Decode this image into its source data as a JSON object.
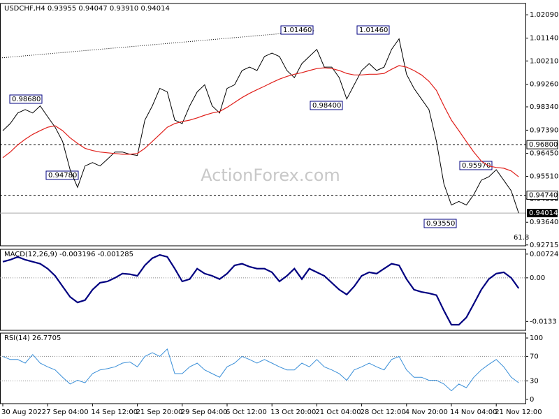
{
  "chart_data": [
    {
      "type": "line",
      "title": "USDCHF,H4 0.93955 0.94047 0.93910 0.94014",
      "watermark": "ActionForex.com",
      "note": "61.8",
      "ylim": [
        0.9268,
        1.0255
      ],
      "yticks": [
        {
          "value": 1.0209,
          "label": "1.02090"
        },
        {
          "value": 1.0114,
          "label": "1.01140"
        },
        {
          "value": 1.0021,
          "label": "1.00210"
        },
        {
          "value": 0.9926,
          "label": "0.99260"
        },
        {
          "value": 0.9834,
          "label": "0.98340"
        },
        {
          "value": 0.9739,
          "label": "0.97390"
        },
        {
          "value": 0.9645,
          "label": "0.96450"
        },
        {
          "value": 0.9551,
          "label": "0.95510"
        },
        {
          "value": 0.9459,
          "label": "0.94590"
        },
        {
          "value": 0.9364,
          "label": "0.93640"
        },
        {
          "value": 0.92715,
          "label": "0.92715"
        }
      ],
      "levels": [
        {
          "value": 0.968,
          "label": "0.96800"
        },
        {
          "value": 0.9474,
          "label": "0.94740"
        }
      ],
      "last": {
        "value": 0.94014,
        "label": "0.94014"
      },
      "annotations": [
        "0.98680",
        "0.94780",
        "1.01460",
        "0.98400",
        "1.01460",
        "0.95970",
        "0.93550"
      ],
      "grid": false,
      "series": [
        {
          "color": "#000000",
          "values": [
            0.9737,
            0.9766,
            0.9809,
            0.9823,
            0.9809,
            0.9838,
            0.9794,
            0.9751,
            0.9693,
            0.9578,
            0.9506,
            0.9593,
            0.9607,
            0.9593,
            0.9621,
            0.965,
            0.965,
            0.9641,
            0.9636,
            0.978,
            0.9838,
            0.9909,
            0.9895,
            0.978,
            0.9766,
            0.9838,
            0.9895,
            0.9924,
            0.9838,
            0.9809,
            0.9909,
            0.9924,
            0.9982,
            0.9996,
            0.9982,
            1.0039,
            1.0053,
            1.0039,
            0.9982,
            0.9953,
            1.001,
            1.0039,
            1.0068,
            0.9996,
            0.9996,
            0.9953,
            0.9866,
            0.9924,
            0.9982,
            1.001,
            0.9982,
            0.9996,
            1.0068,
            1.0111,
            0.9967,
            0.9909,
            0.9866,
            0.9823,
            0.9693,
            0.952,
            0.9434,
            0.9449,
            0.9434,
            0.9477,
            0.9535,
            0.9549,
            0.9578,
            0.9535,
            0.9492,
            0.9401
          ]
        },
        {
          "color": "#e0201b",
          "values": [
            0.9627,
            0.965,
            0.9679,
            0.9702,
            0.9722,
            0.9737,
            0.9751,
            0.9757,
            0.9737,
            0.9708,
            0.9685,
            0.9665,
            0.9656,
            0.965,
            0.9647,
            0.9644,
            0.9641,
            0.9641,
            0.9644,
            0.9665,
            0.9693,
            0.9722,
            0.9751,
            0.9766,
            0.9774,
            0.978,
            0.9789,
            0.98,
            0.9809,
            0.9815,
            0.9832,
            0.9852,
            0.9872,
            0.9889,
            0.9904,
            0.9918,
            0.9933,
            0.9947,
            0.9958,
            0.9967,
            0.9973,
            0.9982,
            0.999,
            0.9993,
            0.999,
            0.9982,
            0.997,
            0.9964,
            0.9964,
            0.9967,
            0.9967,
            0.997,
            0.9987,
            1.0002,
            0.9996,
            0.9982,
            0.9964,
            0.9938,
            0.9901,
            0.9838,
            0.978,
            0.9737,
            0.9693,
            0.965,
            0.9613,
            0.9593,
            0.9587,
            0.9584,
            0.9573,
            0.9549
          ]
        }
      ]
    },
    {
      "type": "line",
      "title": "MACD(12,26,9) -0.003196 -0.001285",
      "ylim": [
        -0.016,
        0.0087
      ],
      "yticks": [
        0.00724,
        {
          "value": 0,
          "label": "0.00"
        },
        -0.0133
      ],
      "grid": true,
      "series": [
        {
          "color": "#000080",
          "values": [
            0.0049,
            0.0055,
            0.0064,
            0.0055,
            0.0049,
            0.0043,
            0.0028,
            0.0006,
            -0.0026,
            -0.0058,
            -0.0075,
            -0.0068,
            -0.0036,
            -0.0015,
            -0.0011,
            0,
            0.0013,
            0.0011,
            0.0006,
            0.0038,
            0.006,
            0.007,
            0.0064,
            0.0028,
            -0.0011,
            -0.0004,
            0.0028,
            0.0013,
            0.0006,
            -0.0004,
            0.0013,
            0.0038,
            0.0043,
            0.0034,
            0.0028,
            0.0028,
            0.0017,
            -0.0011,
            0.0006,
            0.0028,
            -0.0004,
            0.0028,
            0.0017,
            0.0006,
            -0.0015,
            -0.0036,
            -0.0051,
            -0.0026,
            0.0006,
            0.0017,
            0.0013,
            0.0028,
            0.0043,
            0.0038,
            -0.0004,
            -0.0036,
            -0.0043,
            -0.0047,
            -0.0053,
            -0.01,
            -0.0143,
            -0.0143,
            -0.0121,
            -0.0079,
            -0.0036,
            -0.0004,
            0.0013,
            0.0017,
            0,
            -0.0032
          ]
        }
      ]
    },
    {
      "type": "line",
      "title": "RSI(14) 26.7705",
      "ylim": [
        -7,
        108
      ],
      "yticks": [
        100,
        70,
        30,
        0
      ],
      "grid": true,
      "categories": [
        "30 Aug 2022",
        null,
        null,
        null,
        null,
        null,
        "7 Sep 04:00",
        null,
        null,
        null,
        null,
        null,
        "14 Sep 12:00",
        null,
        null,
        null,
        null,
        null,
        "21 Sep 20:00",
        null,
        null,
        null,
        null,
        null,
        "29 Sep 04:00",
        null,
        null,
        null,
        null,
        null,
        "6 Oct 12:00",
        null,
        null,
        null,
        null,
        null,
        "13 Oct 20:00",
        null,
        null,
        null,
        null,
        null,
        "21 Oct 04:00",
        null,
        null,
        null,
        null,
        null,
        "28 Oct 12:00",
        null,
        null,
        null,
        null,
        null,
        "4 Nov 20:00",
        null,
        null,
        null,
        null,
        null,
        "14 Nov 04:00",
        null,
        null,
        null,
        null,
        null,
        "21 Nov 12:00",
        null,
        null,
        null
      ],
      "series": [
        {
          "color": "#3a8fd8",
          "values": [
            70,
            65,
            65,
            59,
            73,
            59,
            53,
            48,
            36,
            25,
            31,
            27,
            42,
            48,
            50,
            53,
            59,
            61,
            53,
            70,
            76,
            70,
            82,
            42,
            42,
            53,
            59,
            48,
            42,
            36,
            53,
            59,
            70,
            65,
            59,
            65,
            59,
            53,
            48,
            48,
            59,
            53,
            65,
            53,
            48,
            42,
            31,
            48,
            53,
            59,
            53,
            48,
            65,
            70,
            48,
            36,
            36,
            31,
            31,
            25,
            14,
            25,
            19,
            36,
            48,
            57,
            65,
            53,
            36,
            27
          ]
        }
      ]
    }
  ]
}
